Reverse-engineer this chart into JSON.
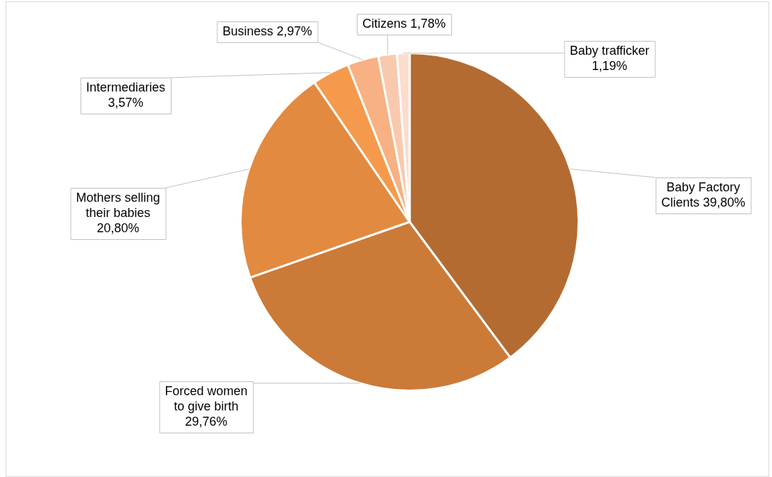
{
  "chart_data": {
    "type": "pie",
    "categories": [
      "Baby Factory Clients",
      "Forced women to give birth",
      "Mothers selling their babies",
      "Intermediaries",
      "Business",
      "Citizens",
      "Baby trafficker"
    ],
    "values": [
      39.8,
      29.76,
      20.8,
      3.57,
      2.97,
      1.78,
      1.19
    ],
    "colors": [
      "#b36b31",
      "#cc7a38",
      "#e28a40",
      "#f59a4c",
      "#f7b183",
      "#f9c9ae",
      "#fbdccd"
    ],
    "value_labels": [
      "39,80%",
      "29,76%",
      "20,80%",
      "3,57%",
      "2,97%",
      "1,78%",
      "1,19%"
    ],
    "legend": false
  }
}
